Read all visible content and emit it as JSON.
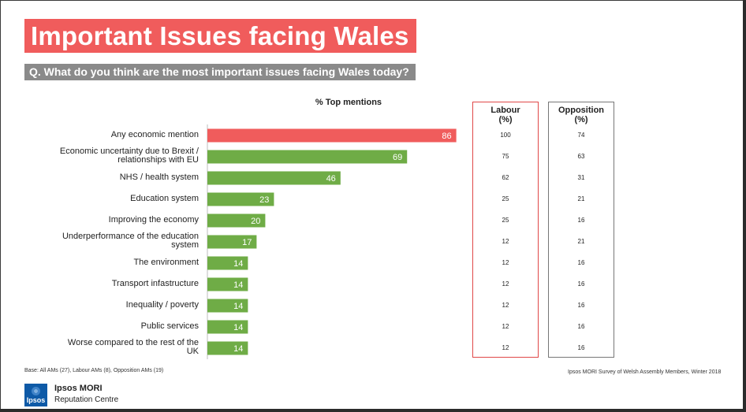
{
  "title": "Important Issues facing Wales",
  "question": "Q. What do you think are the most important issues facing Wales today?",
  "colors": {
    "highlight": "#f05c5c",
    "bar": "#6fac46",
    "labour_border": "#e04848",
    "opposition_border": "#777777"
  },
  "chart_data": {
    "type": "bar",
    "orientation": "horizontal",
    "title": "% Top mentions",
    "categories": [
      "Any economic mention",
      "Economic uncertainty due to Brexit / relationships with EU",
      "NHS / health system",
      "Education system",
      "Improving the economy",
      "Underperformance of the education system",
      "The environment",
      "Transport infastructure",
      "Inequality / poverty",
      "Public services",
      "Worse compared to the rest of the UK"
    ],
    "category_lines": [
      [
        "Any economic mention"
      ],
      [
        "Economic uncertainty due to Brexit /",
        "relationships with EU"
      ],
      [
        "NHS / health system"
      ],
      [
        "Education system"
      ],
      [
        "Improving the economy"
      ],
      [
        "Underperformance of the education",
        "system"
      ],
      [
        "The environment"
      ],
      [
        "Transport infastructure"
      ],
      [
        "Inequality / poverty"
      ],
      [
        "Public services"
      ],
      [
        "Worse compared to the rest of the",
        "UK"
      ]
    ],
    "values": [
      86,
      69,
      46,
      23,
      20,
      17,
      14,
      14,
      14,
      14,
      14
    ],
    "highlight_index": 0,
    "xlim": [
      0,
      100
    ],
    "series": [
      {
        "name": "All AMs",
        "values": [
          86,
          69,
          46,
          23,
          20,
          17,
          14,
          14,
          14,
          14,
          14
        ]
      },
      {
        "name": "Labour (%)",
        "values": [
          100,
          75,
          62,
          25,
          25,
          12,
          12,
          12,
          12,
          12,
          12
        ]
      },
      {
        "name": "Opposition (%)",
        "values": [
          74,
          63,
          31,
          21,
          16,
          21,
          16,
          16,
          16,
          16,
          16
        ]
      }
    ]
  },
  "table": {
    "labour": {
      "title": "Labour",
      "unit": "(%)",
      "values": [
        "100",
        "75",
        "62",
        "25",
        "25",
        "12",
        "12",
        "12",
        "12",
        "12",
        "12"
      ]
    },
    "opposition": {
      "title": "Opposition",
      "unit": "(%)",
      "values": [
        "74",
        "63",
        "31",
        "21",
        "16",
        "21",
        "16",
        "16",
        "16",
        "16",
        "16"
      ]
    }
  },
  "footer": {
    "base": "Base: All AMs (27), Labour AMs (8), Opposition AMs (19)",
    "source": "Ipsos MORI Survey of Welsh Assembly Members, Winter 2018"
  },
  "brand": {
    "logo_text": "Ipsos",
    "name": "Ipsos MORI",
    "subtitle": "Reputation Centre"
  }
}
